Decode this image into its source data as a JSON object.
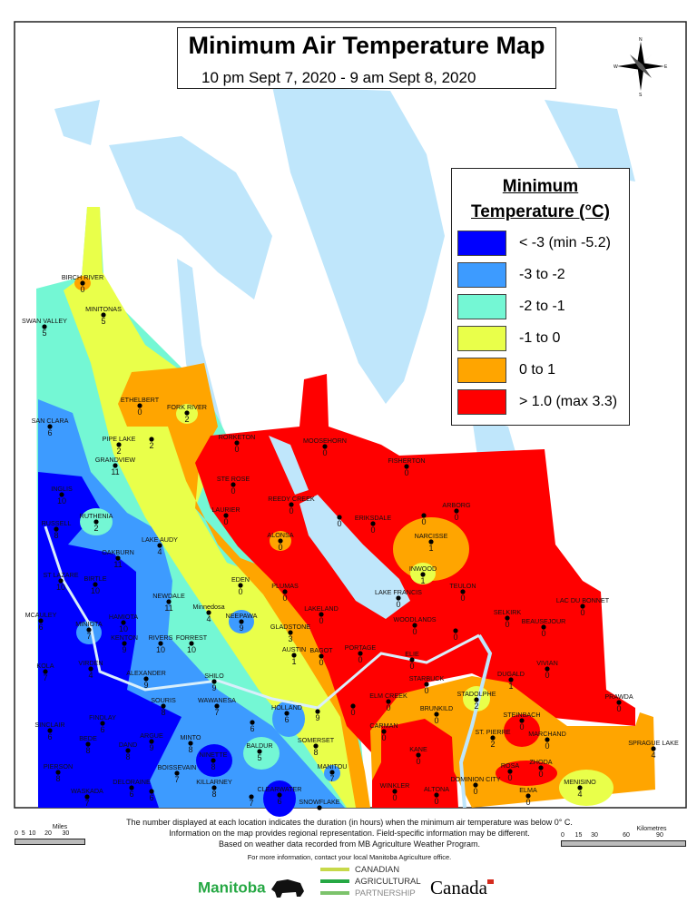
{
  "header": {
    "title": "Minimum Air Temperature Map",
    "subtitle": "10 pm Sept 7, 2020 -  9 am Sept 8, 2020"
  },
  "compass": {
    "n": "N",
    "s": "S",
    "e": "E",
    "w": "W"
  },
  "legend": {
    "title_line1": "Minimum",
    "title_line2": "Temperature (°C)",
    "items": [
      {
        "label": "< -3 (min -5.2)",
        "color": "#0000ff"
      },
      {
        "label": "-3 to -2",
        "color": "#3d9bff"
      },
      {
        "label": "-2 to -1",
        "color": "#74f7d4"
      },
      {
        "label": "-1 to 0",
        "color": "#e9ff4a"
      },
      {
        "label": "0 to 1",
        "color": "#ffa500"
      },
      {
        "label": "> 1.0 (max 3.3)",
        "color": "#ff0000"
      }
    ]
  },
  "colors": {
    "water": "#bfe6fb",
    "boundary": "#9a9a9a",
    "land": "#ffffff"
  },
  "stations": [
    {
      "name": "BIRCH RIVER",
      "value": "0"
    },
    {
      "name": "MINITONAS",
      "value": "5"
    },
    {
      "name": "SWAN VALLEY",
      "value": "5"
    },
    {
      "name": "ETHELBERT",
      "value": "0"
    },
    {
      "name": "FORK RIVER",
      "value": "2"
    },
    {
      "name": "SAN CLARA",
      "value": "6"
    },
    {
      "name": "PIPE LAKE",
      "value": "2"
    },
    {
      "name": "",
      "value": "2"
    },
    {
      "name": "GRANDVIEW",
      "value": "11"
    },
    {
      "name": "RORKETON",
      "value": "0"
    },
    {
      "name": "MOOSEHORN",
      "value": "0"
    },
    {
      "name": "FISHERTON",
      "value": "0"
    },
    {
      "name": "STE ROSE",
      "value": "0"
    },
    {
      "name": "REEDY CREEK",
      "value": "0"
    },
    {
      "name": "",
      "value": "0"
    },
    {
      "name": "ERIKSDALE",
      "value": "0"
    },
    {
      "name": "",
      "value": "0"
    },
    {
      "name": "ARBORG",
      "value": "0"
    },
    {
      "name": "INGLIS",
      "value": "10"
    },
    {
      "name": "RUTHENIA",
      "value": "2"
    },
    {
      "name": "RUSSELL",
      "value": "8"
    },
    {
      "name": "LAURIER",
      "value": "0"
    },
    {
      "name": "ALONSA",
      "value": "0"
    },
    {
      "name": "NARCISSE",
      "value": "1"
    },
    {
      "name": "LAKE AUDY",
      "value": "4"
    },
    {
      "name": "OAKBURN",
      "value": "11"
    },
    {
      "name": "INWOOD",
      "value": "1"
    },
    {
      "name": "EDEN",
      "value": "0"
    },
    {
      "name": "PLUMAS",
      "value": "0"
    },
    {
      "name": "LAKE FRANCIS",
      "value": "0"
    },
    {
      "name": "TEULON",
      "value": "0"
    },
    {
      "name": "LAC DU BONNET",
      "value": "0"
    },
    {
      "name": "ST LAZARE",
      "value": "10"
    },
    {
      "name": "BIRTLE",
      "value": "10"
    },
    {
      "name": "NEWDALE",
      "value": "11"
    },
    {
      "name": "Minnedosa",
      "value": "4"
    },
    {
      "name": "LAKELAND",
      "value": "0"
    },
    {
      "name": "MCAULEY",
      "value": "6"
    },
    {
      "name": "MINIOTA",
      "value": "7"
    },
    {
      "name": "HAMIOTA",
      "value": "10"
    },
    {
      "name": "NEEPAWA",
      "value": "9"
    },
    {
      "name": "GLADSTONE",
      "value": "3"
    },
    {
      "name": "WOODLANDS",
      "value": "0"
    },
    {
      "name": "",
      "value": "0"
    },
    {
      "name": "SELKIRK",
      "value": "0"
    },
    {
      "name": "BEAUSEJOUR",
      "value": "0"
    },
    {
      "name": "KENTON",
      "value": "9"
    },
    {
      "name": "RIVERS",
      "value": "10"
    },
    {
      "name": "FORREST",
      "value": "10"
    },
    {
      "name": "AUSTIN",
      "value": "1"
    },
    {
      "name": "BAGOT",
      "value": "0"
    },
    {
      "name": "PORTAGE",
      "value": "0"
    },
    {
      "name": "ELIE",
      "value": "0"
    },
    {
      "name": "KOLA",
      "value": "7"
    },
    {
      "name": "VIRDEN",
      "value": "4"
    },
    {
      "name": "ALEXANDER",
      "value": "9"
    },
    {
      "name": "SHILO",
      "value": "9"
    },
    {
      "name": "VIVIAN",
      "value": "0"
    },
    {
      "name": "DUGALD",
      "value": "1"
    },
    {
      "name": "STARBUCK",
      "value": "0"
    },
    {
      "name": "STADOLPHE",
      "value": "2"
    },
    {
      "name": "ELM CREEK",
      "value": "0"
    },
    {
      "name": "",
      "value": "0"
    },
    {
      "name": "PRAWDA",
      "value": "0"
    },
    {
      "name": "SOURIS",
      "value": "8"
    },
    {
      "name": "WAWANESA",
      "value": "7"
    },
    {
      "name": "FINDLAY",
      "value": "6"
    },
    {
      "name": "HOLLAND",
      "value": "6"
    },
    {
      "name": "",
      "value": "9"
    },
    {
      "name": "BRUNKILD",
      "value": "0"
    },
    {
      "name": "STEINBACH",
      "value": "0"
    },
    {
      "name": "SINCLAIR",
      "value": "6"
    },
    {
      "name": "",
      "value": "6"
    },
    {
      "name": "CARMAN",
      "value": "0"
    },
    {
      "name": "ST. PIERRE",
      "value": "2"
    },
    {
      "name": "MARCHAND",
      "value": "0"
    },
    {
      "name": "BEDE",
      "value": "8"
    },
    {
      "name": "ARGUE",
      "value": "9"
    },
    {
      "name": "DAND",
      "value": "8"
    },
    {
      "name": "MINTO",
      "value": "8"
    },
    {
      "name": "SOMERSET",
      "value": "8"
    },
    {
      "name": "SPRAGUE LAKE",
      "value": "4"
    },
    {
      "name": "NINETTE",
      "value": "8"
    },
    {
      "name": "BALDUR",
      "value": "5"
    },
    {
      "name": "KANE",
      "value": "0"
    },
    {
      "name": "PIERSON",
      "value": "8"
    },
    {
      "name": "BOISSEVAIN",
      "value": "7"
    },
    {
      "name": "MANITOU",
      "value": "7"
    },
    {
      "name": "ROSA",
      "value": "0"
    },
    {
      "name": "ZHODA",
      "value": "0"
    },
    {
      "name": "DOMINION CITY",
      "value": "0"
    },
    {
      "name": "KILLARNEY",
      "value": "8"
    },
    {
      "name": "DELORAINE",
      "value": "6"
    },
    {
      "name": "",
      "value": "6"
    },
    {
      "name": "WASKADA",
      "value": "7"
    },
    {
      "name": "",
      "value": "7"
    },
    {
      "name": "CLEARWATER",
      "value": "6"
    },
    {
      "name": "SNOWFLAKE",
      "value": ""
    },
    {
      "name": "WINKLER",
      "value": "0"
    },
    {
      "name": "ALTONA",
      "value": "0"
    },
    {
      "name": "ELMA",
      "value": "0"
    },
    {
      "name": "MENISINO",
      "value": "4"
    }
  ],
  "footer": {
    "note_line1": "The number displayed at each location indicates the duration (in hours) when the minimum air temperature was below 0° C.",
    "note_line2": "Information on the map provides regional representation. Field-specific information may be different.",
    "note_line3": "Based on weather data recorded from MB Agriculture Weather Program.",
    "contact": "For more information, contact your local Manitoba Agriculture office.",
    "miles_title": "Miles",
    "miles_ticks": "0  5  10     20      30",
    "km_title": "Kilometres",
    "km_ticks": "0      15     30              60               90",
    "logo_manitoba": "Manitoba",
    "logo_cap1": "CANADIAN",
    "logo_cap2": "AGRICULTURAL",
    "logo_cap3": "PARTNERSHIP",
    "logo_canada": "Canada"
  }
}
